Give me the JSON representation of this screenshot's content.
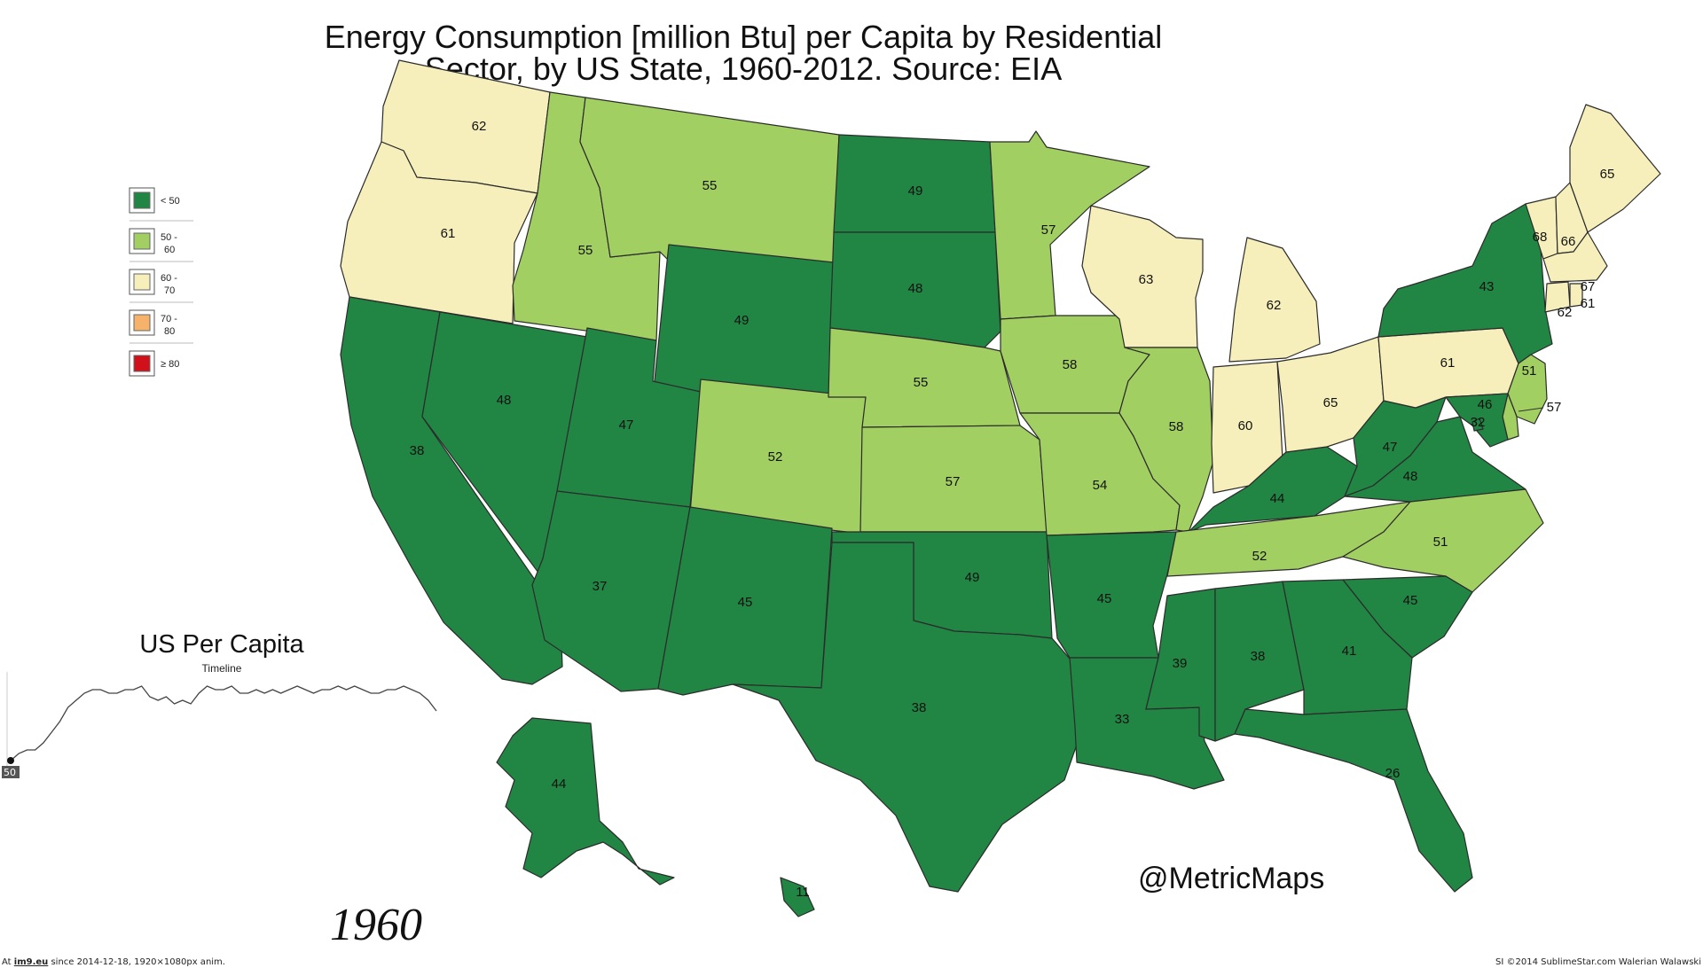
{
  "title": {
    "line1": "Energy Consumption [million Btu] per Capita by Residential",
    "line2": "Sector, by US State, 1960-2012.  Source: EIA"
  },
  "legend": [
    {
      "label1": "< 50",
      "label2": "",
      "color": "#218543"
    },
    {
      "label1": "50 -",
      "label2": "60",
      "color": "#a2cf62"
    },
    {
      "label1": "60 -",
      "label2": "70",
      "color": "#f7efbb"
    },
    {
      "label1": "70 -",
      "label2": "80",
      "color": "#f6b26b"
    },
    {
      "label1": "≥ 80",
      "label2": "",
      "color": "#d0101a"
    }
  ],
  "colors": {
    "lt50": "#218543",
    "50to60": "#a2cf62",
    "60to70": "#f7efbb",
    "70to80": "#f6b26b",
    "ge80": "#d0101a"
  },
  "states": {
    "WA": 62,
    "OR": 61,
    "CA": 38,
    "NV": 48,
    "ID": 55,
    "MT": 55,
    "WY": 49,
    "UT": 47,
    "AZ": 37,
    "CO": 52,
    "NM": 45,
    "ND": 49,
    "SD": 48,
    "NE": 55,
    "KS": 57,
    "OK": 49,
    "TX": 38,
    "MN": 57,
    "IA": 58,
    "MO": 54,
    "AR": 45,
    "LA": 33,
    "WI": 63,
    "IL": 58,
    "MS": 39,
    "MI": 62,
    "IN": 60,
    "KY": 44,
    "TN": 52,
    "AL": 38,
    "OH": 65,
    "WV": 47,
    "VA": 48,
    "NC": 51,
    "SC": 45,
    "GA": 41,
    "FL": 26,
    "PA": 61,
    "NY": 43,
    "NJ": 51,
    "DE": 57,
    "MD": 46,
    "DC": 32,
    "VT": 68,
    "NH": 66,
    "ME": 65,
    "MA": 67,
    "CT": 62,
    "RI": 61,
    "AK": 44,
    "HI": 11
  },
  "timeline": {
    "title": "US Per Capita",
    "subtitle": "Timeline",
    "current_value": "50",
    "values": [
      50,
      52,
      53,
      53,
      55,
      58,
      61,
      65,
      67,
      69,
      70,
      70,
      69,
      69,
      70,
      70,
      71,
      68,
      67,
      68,
      66,
      67,
      66,
      69,
      71,
      70,
      70,
      71,
      69,
      69,
      70,
      69,
      70,
      69,
      70,
      71,
      70,
      69,
      70,
      70,
      71,
      70,
      71,
      70,
      69,
      69,
      70,
      70,
      71,
      70,
      69,
      67,
      64
    ]
  },
  "year": "1960",
  "watermark": "@MetricMaps",
  "footer": {
    "left_prefix": "At ",
    "left_link": "im9.eu",
    "left_rest": " since 2014-12-18, 1920×1080px anim.",
    "right": "SI ©2014 SublimeStar.com Walerian Walawski"
  }
}
